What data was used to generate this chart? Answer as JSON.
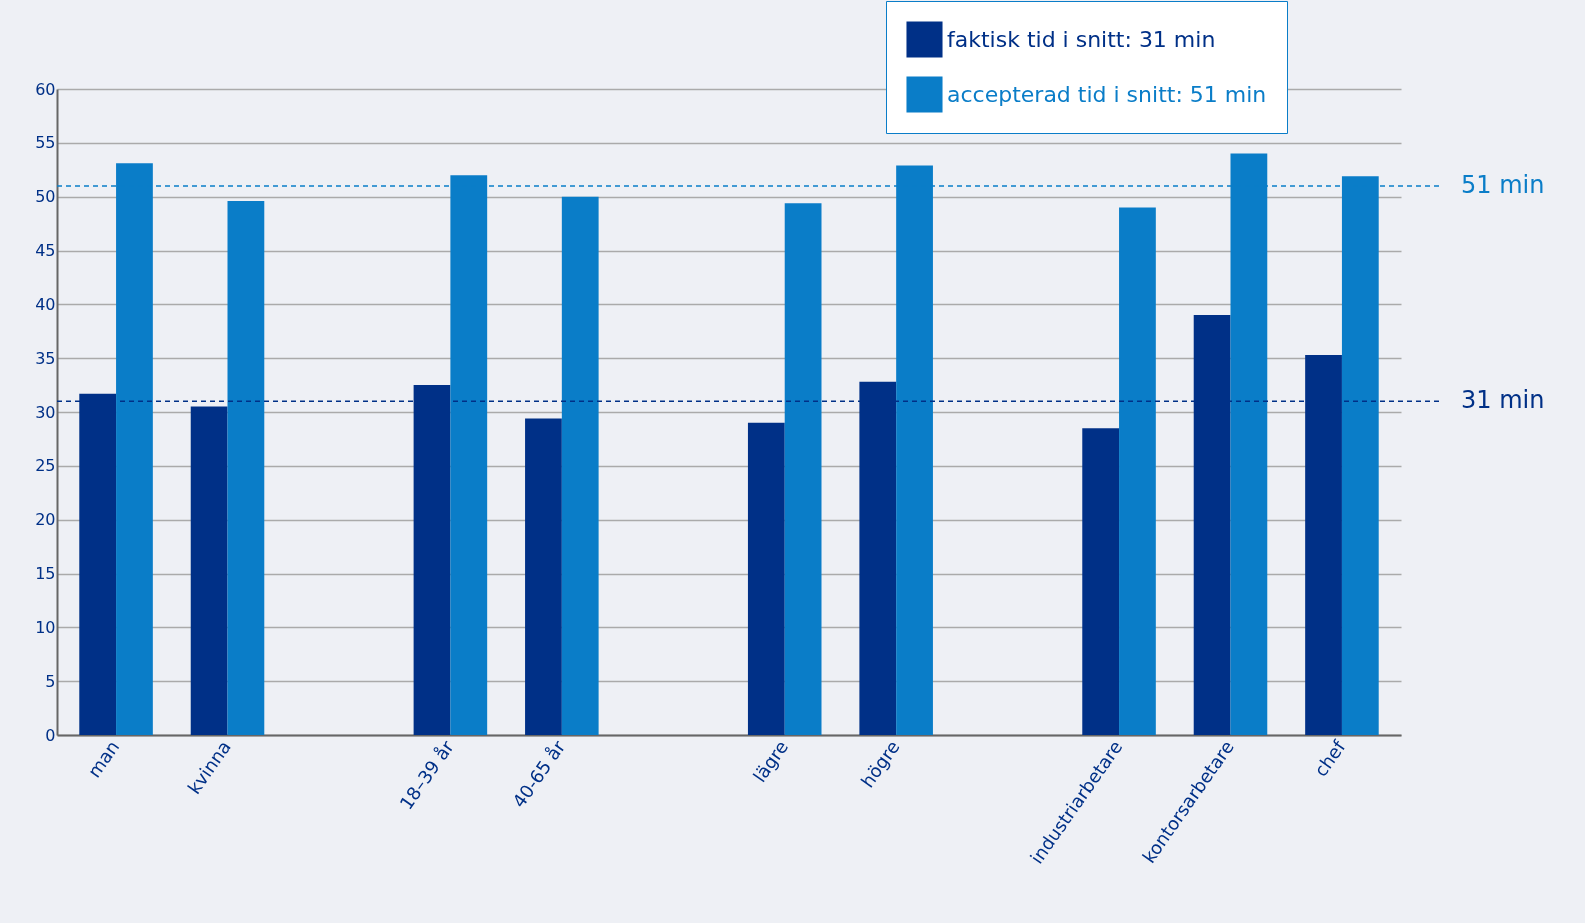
{
  "chart_data": {
    "type": "bar",
    "categories": [
      "man",
      "kvinna",
      null,
      "18–39 år",
      "40-65 år",
      null,
      "lägre",
      "högre",
      null,
      "industriarbetare",
      "kontorsarbetare",
      "chef"
    ],
    "series": [
      {
        "name": "faktisk tid i snitt: 31 min",
        "color": "#003087",
        "values": [
          31.7,
          30.5,
          null,
          32.5,
          29.4,
          null,
          29.0,
          32.8,
          null,
          28.5,
          39.0,
          35.3
        ]
      },
      {
        "name": "accepterad tid i snitt: 51 min",
        "color": "#0a7dc8",
        "values": [
          53.1,
          49.6,
          null,
          52.0,
          50.0,
          null,
          49.4,
          52.9,
          null,
          49.0,
          54.0,
          51.9
        ]
      }
    ],
    "ylim": [
      0,
      60
    ],
    "yticks": [
      0,
      5,
      10,
      15,
      20,
      25,
      30,
      35,
      40,
      45,
      50,
      55,
      60
    ],
    "grid": "y",
    "legend": "top right",
    "ref_lines": [
      {
        "axis": "y",
        "value": 51,
        "label": "51 min",
        "color": "#0a7dc8",
        "line_style": "dashed"
      },
      {
        "axis": "y",
        "value": 31,
        "label": "31 min",
        "color": "#003087",
        "line_style": "dashed"
      }
    ]
  }
}
